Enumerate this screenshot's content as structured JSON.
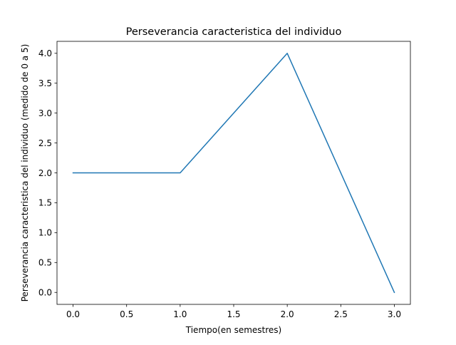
{
  "chart_data": {
    "type": "line",
    "title": "Perseverancia caracteristica del individuo",
    "xlabel": "Tiempo(en semestres)",
    "ylabel": "Perseverancia caracteristica del individuo (medido de 0 a 5)",
    "x": [
      0,
      1,
      2,
      3
    ],
    "series": [
      {
        "values": [
          2,
          2,
          4,
          0
        ]
      }
    ],
    "xlim": [
      -0.15,
      3.15
    ],
    "ylim": [
      -0.2,
      4.2
    ],
    "xticks": [
      "0.0",
      "0.5",
      "1.0",
      "1.5",
      "2.0",
      "2.5",
      "3.0"
    ],
    "yticks": [
      "0.0",
      "0.5",
      "1.0",
      "1.5",
      "2.0",
      "2.5",
      "3.0",
      "3.5",
      "4.0"
    ],
    "grid": false,
    "line_color": "#1f77b4"
  }
}
